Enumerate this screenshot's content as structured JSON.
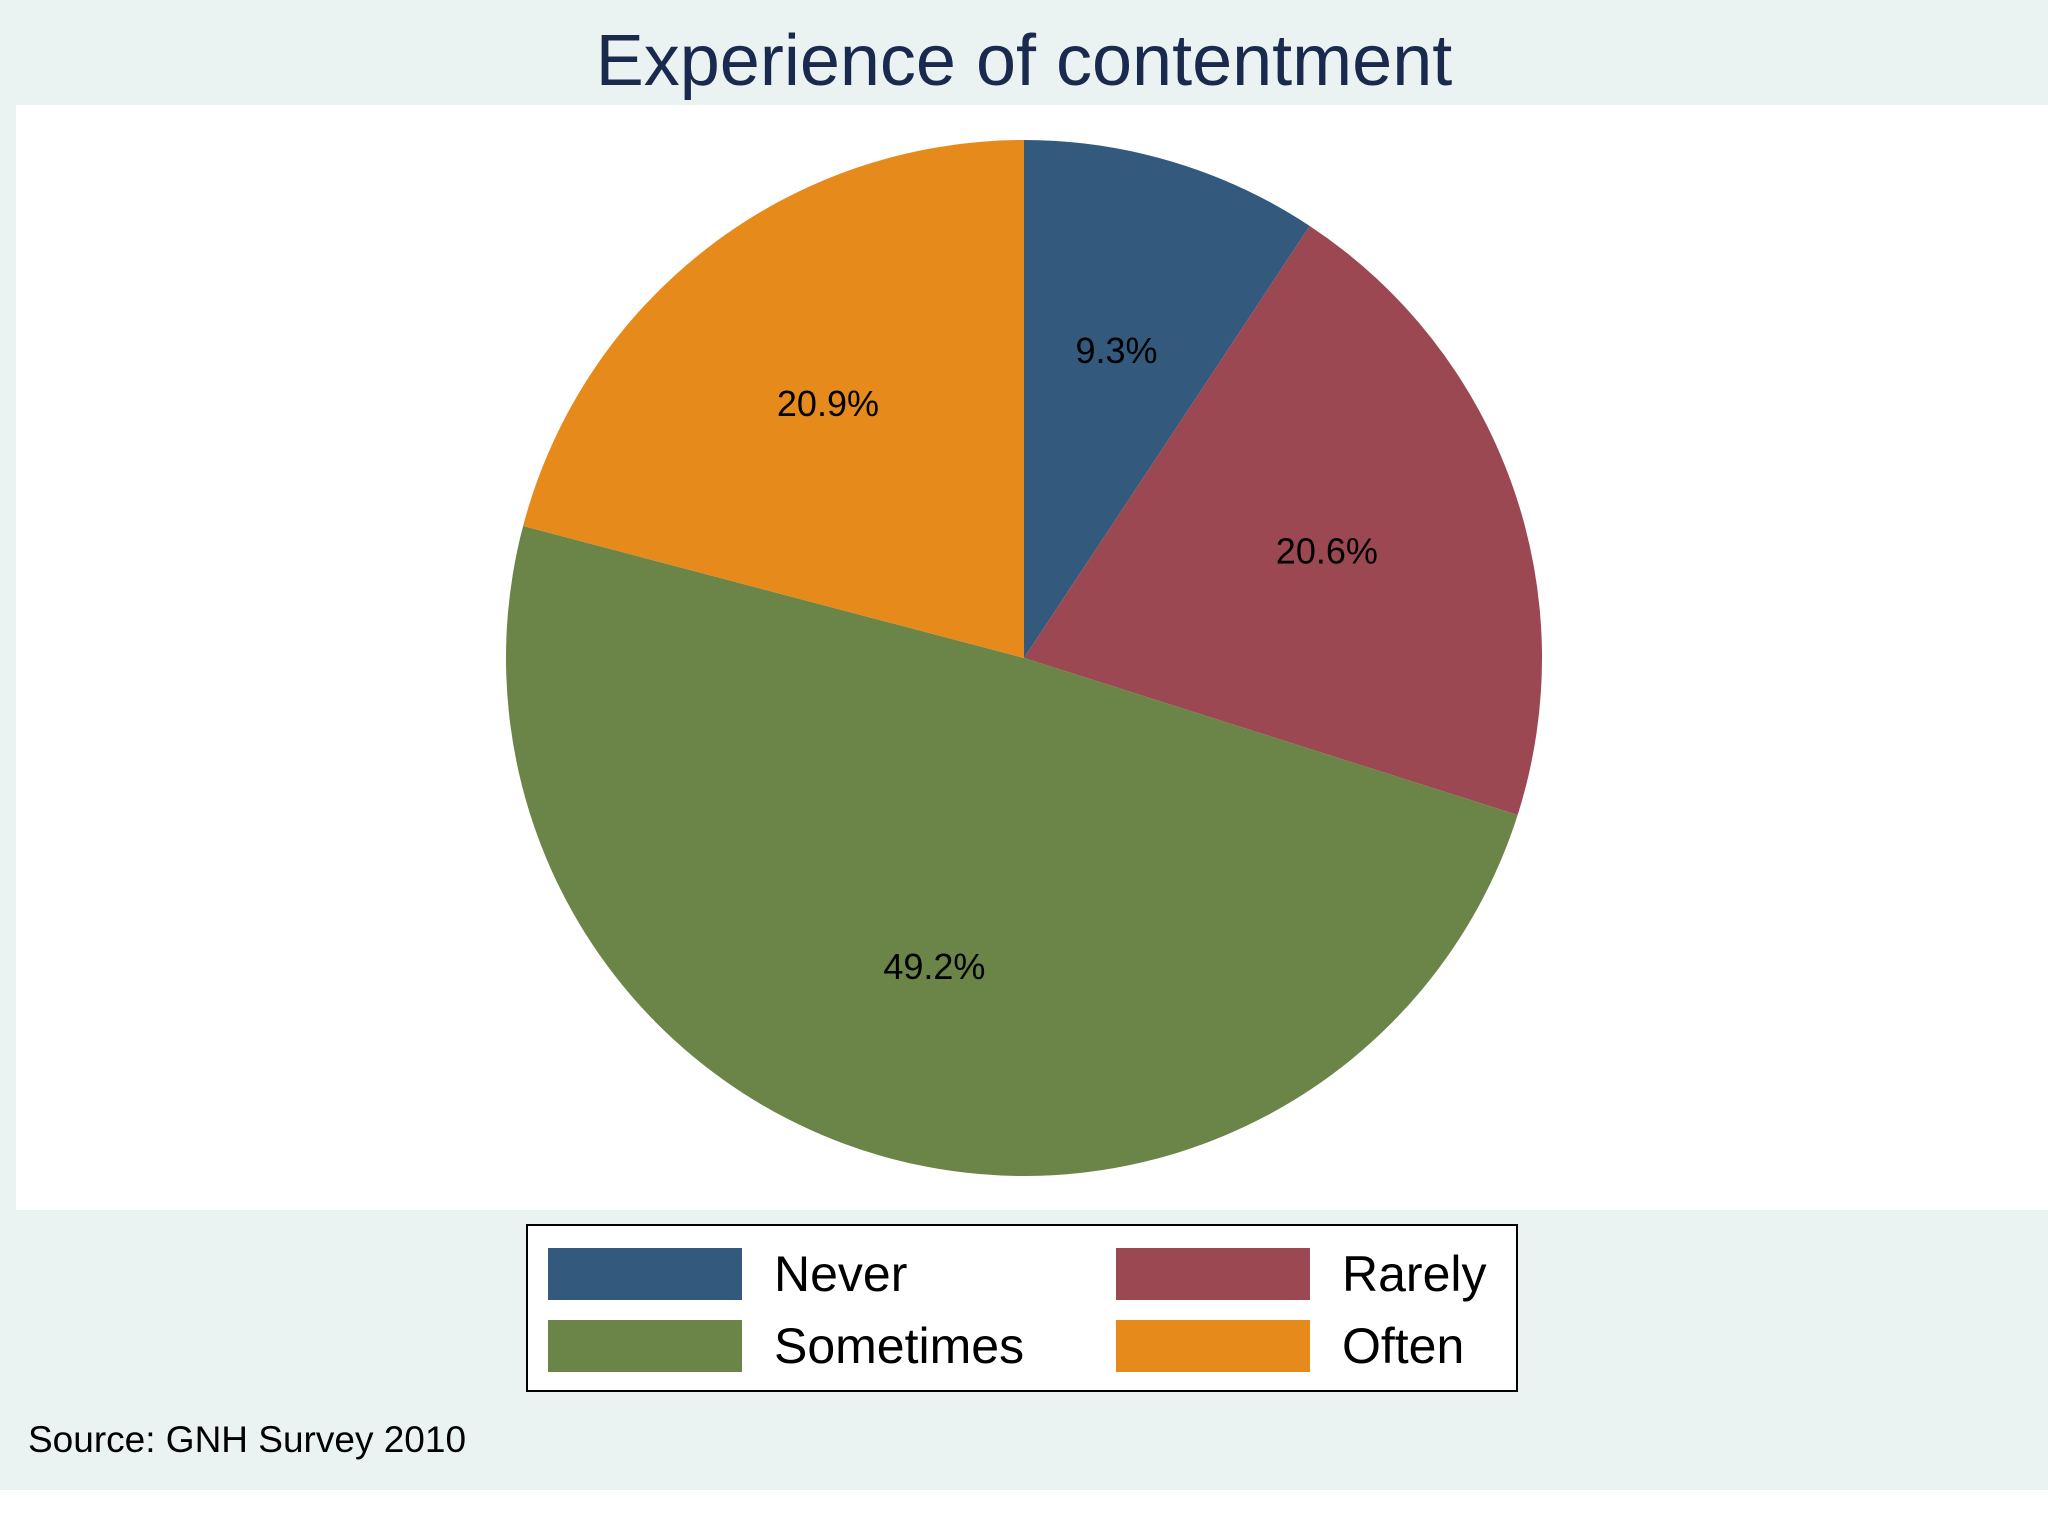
{
  "chart_data": {
    "type": "pie",
    "title": "Experience of contentment",
    "start_angle_deg": 90,
    "direction": "clockwise",
    "legend_placement": "bottom",
    "slices": [
      {
        "name": "Never",
        "value": 9.3,
        "label": "9.3%",
        "color": "#335a7d"
      },
      {
        "name": "Rarely",
        "value": 20.6,
        "label": "20.6%",
        "color": "#9c4853"
      },
      {
        "name": "Sometimes",
        "value": 49.2,
        "label": "49.2%",
        "color": "#6b8447"
      },
      {
        "name": "Often",
        "value": 20.9,
        "label": "20.9%",
        "color": "#e58a1b"
      }
    ],
    "legend_order": [
      "Never",
      "Rarely",
      "Sometimes",
      "Often"
    ],
    "source": "Source: GNH Survey 2010"
  }
}
